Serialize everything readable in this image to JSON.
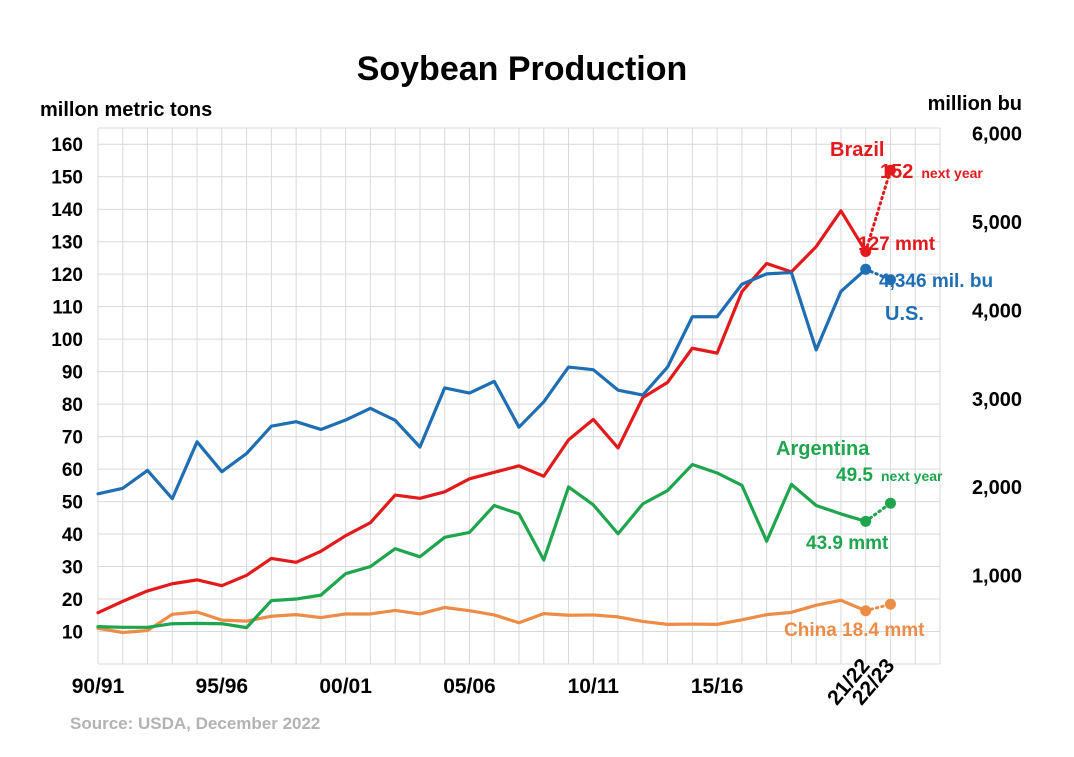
{
  "chart_data": {
    "type": "line",
    "title": "Soybean Production",
    "ylabel": "millon metric tons",
    "y2label": "million bu",
    "ylim": [
      0,
      165
    ],
    "y2lim": [
      0,
      6064
    ],
    "yticks": [
      "10",
      "20",
      "30",
      "40",
      "50",
      "60",
      "70",
      "80",
      "90",
      "100",
      "110",
      "120",
      "130",
      "140",
      "150",
      "160"
    ],
    "y2ticks": [
      "1,000",
      "2,000",
      "3,000",
      "4,000",
      "5,000",
      "6,000"
    ],
    "y2tick_values": [
      1000,
      2000,
      3000,
      4000,
      5000,
      6000
    ],
    "grid": true,
    "source": "Source: USDA, December 2022",
    "x_labels": [
      {
        "label": "90/91",
        "index": 0,
        "rotated": false
      },
      {
        "label": "95/96",
        "index": 5,
        "rotated": false
      },
      {
        "label": "00/01",
        "index": 10,
        "rotated": false
      },
      {
        "label": "05/06",
        "index": 15,
        "rotated": false
      },
      {
        "label": "10/11",
        "index": 20,
        "rotated": false
      },
      {
        "label": "15/16",
        "index": 25,
        "rotated": false
      },
      {
        "label": "21/22",
        "index": 31,
        "rotated": true
      },
      {
        "label": "22/23",
        "index": 32,
        "rotated": true
      }
    ],
    "series": [
      {
        "name": "Brazil",
        "color": "#e31a1c",
        "values": [
          15.8,
          19.3,
          22.5,
          24.7,
          25.9,
          24.1,
          27.3,
          32.5,
          31.3,
          34.7,
          39.5,
          43.5,
          52,
          51,
          53,
          57,
          59,
          61,
          57.8,
          69,
          75.3,
          66.5,
          82,
          86.7,
          97.2,
          95.7,
          114.6,
          123.3,
          120.7,
          128.5,
          139.5,
          127
        ],
        "projection": 152,
        "labels": {
          "name": "Brazil",
          "value": "127 mmt",
          "projection": "152",
          "projection_note": "next year"
        }
      },
      {
        "name": "U.S.",
        "color": "#1f6eb4",
        "values": [
          52.4,
          54.1,
          59.6,
          50.9,
          68.4,
          59.2,
          64.8,
          73.2,
          74.6,
          72.2,
          75.1,
          78.7,
          75,
          66.8,
          85,
          83.4,
          87,
          72.9,
          80.7,
          91.4,
          90.6,
          84.3,
          82.8,
          91.4,
          106.9,
          106.9,
          116.9,
          120.1,
          120.5,
          96.7,
          114.7,
          121.5
        ],
        "projection": 118.3,
        "labels": {
          "name": "U.S.",
          "value": "4,346 mil. bu"
        }
      },
      {
        "name": "Argentina",
        "color": "#1ea54e",
        "values": [
          11.5,
          11.3,
          11.3,
          12.4,
          12.5,
          12.4,
          11.2,
          19.5,
          20,
          21.2,
          27.8,
          30,
          35.5,
          33,
          39,
          40.5,
          48.8,
          46.2,
          32,
          54.5,
          49,
          40.1,
          49.3,
          53.4,
          61.4,
          58.8,
          55,
          37.8,
          55.3,
          48.8,
          46.2,
          43.9
        ],
        "projection": 49.5,
        "labels": {
          "name": "Argentina",
          "value": "43.9 mmt",
          "projection": "49.5",
          "projection_note": "next year"
        }
      },
      {
        "name": "China",
        "color": "#ed8c47",
        "values": [
          11,
          9.7,
          10.3,
          15.3,
          16,
          13.5,
          13.2,
          14.7,
          15.2,
          14.3,
          15.4,
          15.4,
          16.5,
          15.4,
          17.4,
          16.4,
          15.1,
          12.7,
          15.5,
          15,
          15.1,
          14.5,
          13.1,
          12.2,
          12.3,
          12.2,
          13.6,
          15.2,
          15.9,
          18.1,
          19.6,
          16.4
        ],
        "projection": 18.4,
        "labels": {
          "value": "China 18.4 mmt"
        }
      }
    ]
  }
}
